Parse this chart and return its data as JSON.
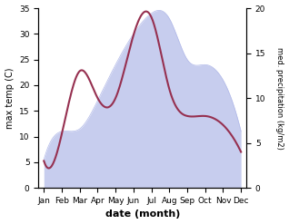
{
  "months": [
    "Jan",
    "Feb",
    "Mar",
    "Apr",
    "May",
    "Jun",
    "Jul",
    "Aug",
    "Sep",
    "Oct",
    "Nov",
    "Dec"
  ],
  "temperature": [
    5.5,
    11.0,
    11.5,
    17.0,
    24.0,
    30.0,
    34.0,
    33.0,
    25.0,
    24.0,
    21.0,
    11.0
  ],
  "precipitation": [
    3.0,
    6.0,
    13.0,
    10.0,
    10.0,
    17.0,
    19.0,
    11.0,
    8.0,
    8.0,
    7.0,
    4.0
  ],
  "temp_fill_color": "#b0b8e8",
  "precip_line_color": "#963050",
  "ylabel_left": "max temp (C)",
  "ylabel_right": "med. precipitation (kg/m2)",
  "xlabel": "date (month)",
  "ylim_left": [
    0,
    35
  ],
  "ylim_right": [
    0,
    20
  ],
  "yticks_left": [
    0,
    5,
    10,
    15,
    20,
    25,
    30,
    35
  ],
  "yticks_right": [
    0,
    5,
    10,
    15,
    20
  ],
  "background_color": "#ffffff"
}
